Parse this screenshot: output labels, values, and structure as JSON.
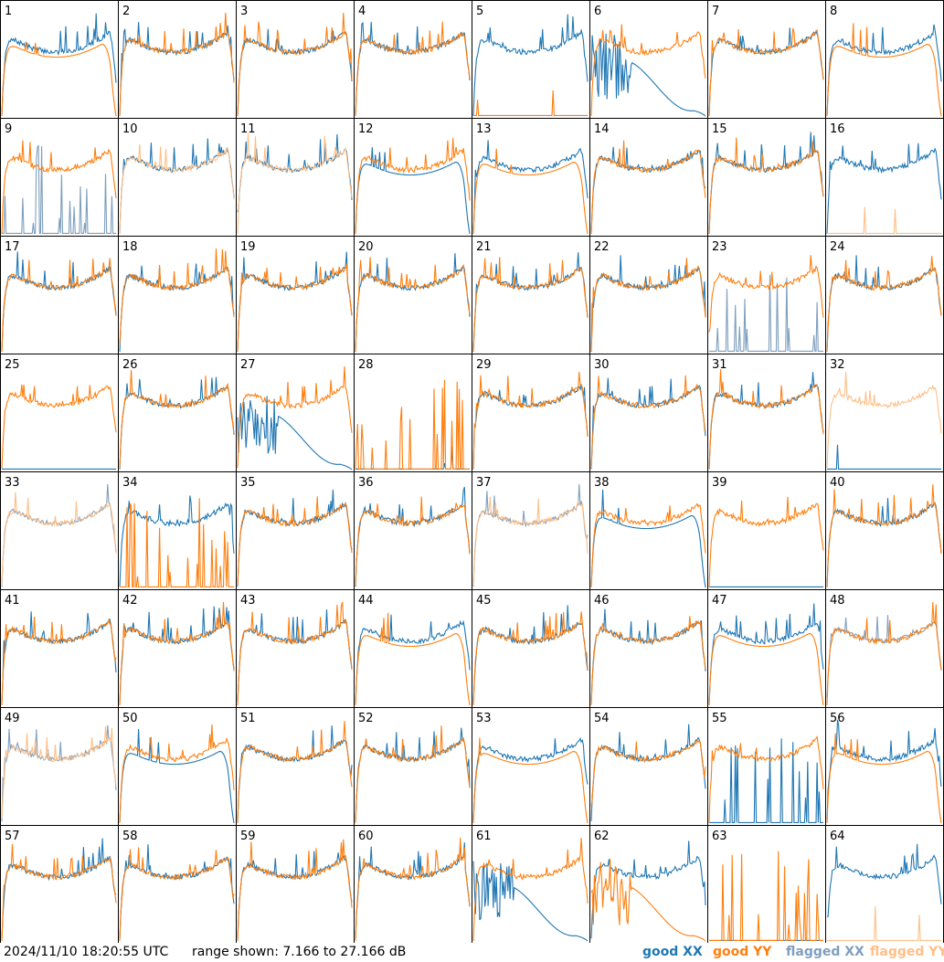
{
  "timestamp": "2024/11/10 18:20:55 UTC",
  "range_text": "range shown: 7.166 to 27.166 dB",
  "legend": [
    {
      "label": "good XX",
      "color": "#1f77b4"
    },
    {
      "label": "good YY",
      "color": "#ff7f0e"
    },
    {
      "label": "flagged XX",
      "color": "#7f9fbf"
    },
    {
      "label": "flagged YY",
      "color": "#ffbf87"
    }
  ],
  "colors": {
    "good_xx": "#1f77b4",
    "good_yy": "#ff7f0e",
    "flagged_xx": "#7f9fbf",
    "flagged_yy": "#ffbf87",
    "frame": "#000000"
  },
  "chart_data": {
    "type": "line",
    "title": "",
    "layout_rows": 8,
    "layout_cols": 8,
    "y_range_db": [
      7.166,
      27.166
    ],
    "panels": [
      {
        "id": "1",
        "xx": "good",
        "yy": "good",
        "xx_shape": "normal",
        "yy_shape": "rolloff"
      },
      {
        "id": "2",
        "xx": "good",
        "yy": "good",
        "xx_shape": "normal",
        "yy_shape": "normal"
      },
      {
        "id": "3",
        "xx": "good",
        "yy": "good",
        "xx_shape": "normal",
        "yy_shape": "normal"
      },
      {
        "id": "4",
        "xx": "good",
        "yy": "good",
        "xx_shape": "normal",
        "yy_shape": "normal"
      },
      {
        "id": "5",
        "xx": "good",
        "yy": "good",
        "xx_shape": "normal",
        "yy_shape": "dead"
      },
      {
        "id": "6",
        "xx": "good",
        "yy": "good",
        "xx_shape": "wave",
        "yy_shape": "normal"
      },
      {
        "id": "7",
        "xx": "good",
        "yy": "good",
        "xx_shape": "normal",
        "yy_shape": "normal"
      },
      {
        "id": "8",
        "xx": "good",
        "yy": "good",
        "xx_shape": "normal",
        "yy_shape": "rolloff"
      },
      {
        "id": "9",
        "xx": "flagged",
        "yy": "good",
        "xx_shape": "spiky",
        "yy_shape": "normal"
      },
      {
        "id": "10",
        "xx": "good",
        "yy": "flagged",
        "xx_shape": "normal",
        "yy_shape": "normal"
      },
      {
        "id": "11",
        "xx": "good",
        "yy": "flagged",
        "xx_shape": "normal",
        "yy_shape": "normal"
      },
      {
        "id": "12",
        "xx": "good",
        "yy": "good",
        "xx_shape": "rolloff",
        "yy_shape": "normal"
      },
      {
        "id": "13",
        "xx": "good",
        "yy": "good",
        "xx_shape": "normal",
        "yy_shape": "rolloff"
      },
      {
        "id": "14",
        "xx": "good",
        "yy": "good",
        "xx_shape": "normal",
        "yy_shape": "normal"
      },
      {
        "id": "15",
        "xx": "good",
        "yy": "good",
        "xx_shape": "normal",
        "yy_shape": "normal"
      },
      {
        "id": "16",
        "xx": "good",
        "yy": "flagged",
        "xx_shape": "normal",
        "yy_shape": "dead"
      },
      {
        "id": "17",
        "xx": "good",
        "yy": "good",
        "xx_shape": "normal",
        "yy_shape": "normal"
      },
      {
        "id": "18",
        "xx": "good",
        "yy": "good",
        "xx_shape": "normal",
        "yy_shape": "normal"
      },
      {
        "id": "19",
        "xx": "good",
        "yy": "good",
        "xx_shape": "normal",
        "yy_shape": "normal"
      },
      {
        "id": "20",
        "xx": "good",
        "yy": "good",
        "xx_shape": "normal",
        "yy_shape": "normal"
      },
      {
        "id": "21",
        "xx": "good",
        "yy": "good",
        "xx_shape": "normal",
        "yy_shape": "normal"
      },
      {
        "id": "22",
        "xx": "good",
        "yy": "good",
        "xx_shape": "normal",
        "yy_shape": "normal"
      },
      {
        "id": "23",
        "xx": "flagged",
        "yy": "good",
        "xx_shape": "spiky",
        "yy_shape": "normal"
      },
      {
        "id": "24",
        "xx": "good",
        "yy": "good",
        "xx_shape": "normal",
        "yy_shape": "normal"
      },
      {
        "id": "25",
        "xx": "good",
        "yy": "good",
        "xx_shape": "dead",
        "yy_shape": "normal"
      },
      {
        "id": "26",
        "xx": "good",
        "yy": "good",
        "xx_shape": "normal",
        "yy_shape": "normal"
      },
      {
        "id": "27",
        "xx": "good",
        "yy": "good",
        "xx_shape": "wave",
        "yy_shape": "normal"
      },
      {
        "id": "28",
        "xx": "good",
        "yy": "good",
        "xx_shape": "dead",
        "yy_shape": "spiky"
      },
      {
        "id": "29",
        "xx": "good",
        "yy": "good",
        "xx_shape": "normal",
        "yy_shape": "normal"
      },
      {
        "id": "30",
        "xx": "good",
        "yy": "good",
        "xx_shape": "normal",
        "yy_shape": "normal"
      },
      {
        "id": "31",
        "xx": "good",
        "yy": "good",
        "xx_shape": "normal",
        "yy_shape": "normal"
      },
      {
        "id": "32",
        "xx": "good",
        "yy": "flagged",
        "xx_shape": "dead",
        "yy_shape": "normal"
      },
      {
        "id": "33",
        "xx": "flagged",
        "yy": "flagged",
        "xx_shape": "normal",
        "yy_shape": "normal"
      },
      {
        "id": "34",
        "xx": "good",
        "yy": "good",
        "xx_shape": "normal",
        "yy_shape": "spiky"
      },
      {
        "id": "35",
        "xx": "good",
        "yy": "good",
        "xx_shape": "normal",
        "yy_shape": "normal"
      },
      {
        "id": "36",
        "xx": "good",
        "yy": "good",
        "xx_shape": "normal",
        "yy_shape": "normal"
      },
      {
        "id": "37",
        "xx": "flagged",
        "yy": "flagged",
        "xx_shape": "normal",
        "yy_shape": "normal"
      },
      {
        "id": "38",
        "xx": "good",
        "yy": "good",
        "xx_shape": "rolloff",
        "yy_shape": "normal"
      },
      {
        "id": "39",
        "xx": "good",
        "yy": "good",
        "xx_shape": "dead",
        "yy_shape": "normal"
      },
      {
        "id": "40",
        "xx": "good",
        "yy": "good",
        "xx_shape": "normal",
        "yy_shape": "normal"
      },
      {
        "id": "41",
        "xx": "good",
        "yy": "good",
        "xx_shape": "normal",
        "yy_shape": "normal"
      },
      {
        "id": "42",
        "xx": "good",
        "yy": "good",
        "xx_shape": "normal",
        "yy_shape": "normal"
      },
      {
        "id": "43",
        "xx": "good",
        "yy": "good",
        "xx_shape": "normal",
        "yy_shape": "normal"
      },
      {
        "id": "44",
        "xx": "good",
        "yy": "good",
        "xx_shape": "normal",
        "yy_shape": "rolloff"
      },
      {
        "id": "45",
        "xx": "good",
        "yy": "good",
        "xx_shape": "normal",
        "yy_shape": "normal"
      },
      {
        "id": "46",
        "xx": "good",
        "yy": "good",
        "xx_shape": "normal",
        "yy_shape": "normal"
      },
      {
        "id": "47",
        "xx": "good",
        "yy": "good",
        "xx_shape": "normal",
        "yy_shape": "rolloff"
      },
      {
        "id": "48",
        "xx": "flagged",
        "yy": "good",
        "xx_shape": "normal",
        "yy_shape": "normal"
      },
      {
        "id": "49",
        "xx": "flagged",
        "yy": "flagged",
        "xx_shape": "normal",
        "yy_shape": "normal"
      },
      {
        "id": "50",
        "xx": "good",
        "yy": "good",
        "xx_shape": "rolloff",
        "yy_shape": "normal"
      },
      {
        "id": "51",
        "xx": "good",
        "yy": "good",
        "xx_shape": "normal",
        "yy_shape": "normal"
      },
      {
        "id": "52",
        "xx": "good",
        "yy": "good",
        "xx_shape": "normal",
        "yy_shape": "normal"
      },
      {
        "id": "53",
        "xx": "good",
        "yy": "good",
        "xx_shape": "normal",
        "yy_shape": "rolloff"
      },
      {
        "id": "54",
        "xx": "good",
        "yy": "good",
        "xx_shape": "normal",
        "yy_shape": "normal"
      },
      {
        "id": "55",
        "xx": "good",
        "yy": "good",
        "xx_shape": "spiky",
        "yy_shape": "normal"
      },
      {
        "id": "56",
        "xx": "good",
        "yy": "good",
        "xx_shape": "normal",
        "yy_shape": "rolloff"
      },
      {
        "id": "57",
        "xx": "good",
        "yy": "good",
        "xx_shape": "normal",
        "yy_shape": "normal"
      },
      {
        "id": "58",
        "xx": "good",
        "yy": "good",
        "xx_shape": "normal",
        "yy_shape": "normal"
      },
      {
        "id": "59",
        "xx": "good",
        "yy": "good",
        "xx_shape": "normal",
        "yy_shape": "normal"
      },
      {
        "id": "60",
        "xx": "good",
        "yy": "good",
        "xx_shape": "normal",
        "yy_shape": "normal"
      },
      {
        "id": "61",
        "xx": "good",
        "yy": "good",
        "xx_shape": "wave",
        "yy_shape": "normal"
      },
      {
        "id": "62",
        "xx": "good",
        "yy": "good",
        "xx_shape": "normal",
        "yy_shape": "wave"
      },
      {
        "id": "63",
        "xx": "good",
        "yy": "good",
        "xx_shape": "dead",
        "yy_shape": "spiky"
      },
      {
        "id": "64",
        "xx": "good",
        "yy": "flagged",
        "xx_shape": "normal",
        "yy_shape": "dead"
      }
    ]
  }
}
